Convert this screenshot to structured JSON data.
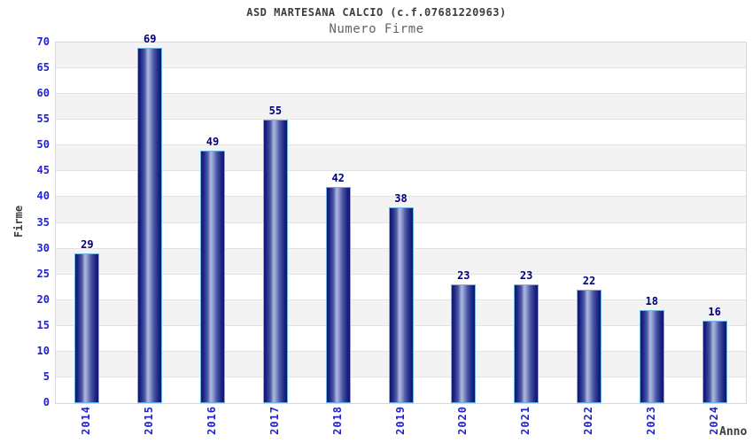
{
  "chart_data": {
    "type": "bar",
    "title": "ASD MARTESANA CALCIO (c.f.07681220963)",
    "subtitle": "Numero Firme",
    "xlabel": "Anno",
    "ylabel": "Firme",
    "categories": [
      "2014",
      "2015",
      "2016",
      "2017",
      "2018",
      "2019",
      "2020",
      "2021",
      "2022",
      "2023",
      "2024"
    ],
    "values": [
      29,
      69,
      49,
      55,
      42,
      38,
      23,
      23,
      22,
      18,
      16
    ],
    "ylim": [
      0,
      70
    ],
    "ytick_step": 5,
    "yticks": [
      0,
      5,
      10,
      15,
      20,
      25,
      30,
      35,
      40,
      45,
      50,
      55,
      60,
      65,
      70
    ],
    "grid": "horizontal-alternating-bands",
    "legend": "none",
    "colors": {
      "axis_tick_text": "#2222cc",
      "bar_value_text": "#00007d",
      "bar_dark": "#10166b",
      "bar_highlight": "#aeb7de",
      "bar_border": "#6db4ea",
      "band_gray": "#f3f3f3",
      "band_white": "#ffffff",
      "gridline": "#e2e2e2",
      "plot_border": "#d8d8d8",
      "title_text": "#3d3d3d",
      "subtitle_text": "#646464",
      "background": "#ffffff"
    }
  }
}
